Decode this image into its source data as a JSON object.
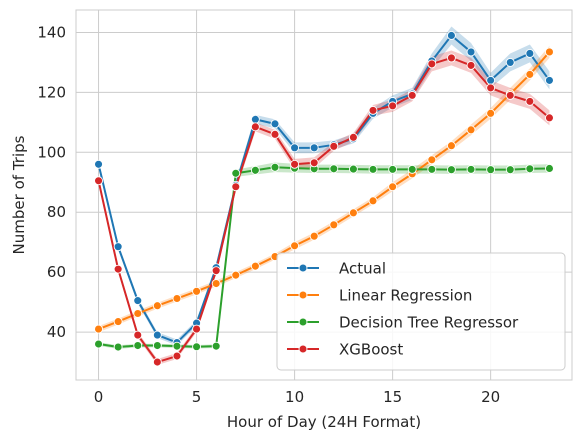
{
  "chart_data": {
    "type": "line",
    "xlabel": "Hour of Day (24H Format)",
    "ylabel": "Number of Trips",
    "xlim": [
      -1.15,
      24.15
    ],
    "ylim": [
      24,
      147.5
    ],
    "xticks": [
      0,
      5,
      10,
      15,
      20
    ],
    "yticks": [
      40,
      60,
      80,
      100,
      120,
      140
    ],
    "grid": true,
    "legend": "lower-right",
    "x": [
      0,
      1,
      2,
      3,
      4,
      5,
      6,
      7,
      8,
      9,
      10,
      11,
      12,
      13,
      14,
      15,
      16,
      17,
      18,
      19,
      20,
      21,
      22,
      23
    ],
    "series": [
      {
        "name": "Actual",
        "color": "#1f77b4",
        "values": [
          96,
          68.5,
          50.5,
          39,
          36.5,
          43,
          61.5,
          89,
          111,
          109.5,
          101.5,
          101.5,
          102.5,
          104.5,
          113,
          117,
          119.5,
          130.5,
          139,
          133.5,
          124,
          130,
          133,
          124
        ],
        "band": [
          1,
          1,
          1,
          1,
          1,
          1,
          1.2,
          1.5,
          1.5,
          1.5,
          1.8,
          1.8,
          1.5,
          1.5,
          1.8,
          2,
          2,
          2.5,
          3,
          3,
          2.5,
          3,
          3,
          3
        ]
      },
      {
        "name": "Linear Regression",
        "color": "#ff7f0e",
        "values": [
          41,
          43.5,
          46.2,
          48.8,
          51.2,
          53.6,
          56.2,
          59,
          62,
          65.2,
          68.8,
          72,
          75.8,
          79.8,
          83.8,
          88.5,
          92.8,
          97.5,
          102.2,
          107.5,
          113,
          119.5,
          126,
          133.5
        ],
        "band": [
          1,
          1,
          1,
          1,
          1,
          1,
          1,
          1,
          1,
          1,
          1.2,
          1.2,
          1.2,
          1.2,
          1.2,
          1.5,
          1.5,
          1.5,
          1.5,
          1.8,
          1.8,
          2,
          2,
          2
        ]
      },
      {
        "name": "Decision Tree Regressor",
        "color": "#2ca02c",
        "values": [
          36,
          35,
          35.5,
          35.5,
          35.3,
          35.1,
          35.3,
          93,
          94,
          95,
          94.7,
          94.5,
          94.5,
          94.4,
          94.3,
          94.3,
          94.3,
          94.3,
          94.2,
          94.3,
          94.2,
          94.2,
          94.5,
          94.6
        ],
        "band": [
          0.6,
          0.6,
          0.6,
          0.6,
          0.6,
          0.6,
          0.6,
          1.2,
          1.4,
          1.6,
          1.5,
          1.4,
          1.4,
          1.4,
          1.4,
          1.4,
          1.4,
          1.4,
          1.4,
          1.4,
          1.4,
          1.4,
          1.4,
          1.4
        ]
      },
      {
        "name": "XGBoost",
        "color": "#d62728",
        "values": [
          90.5,
          61,
          39,
          30,
          32,
          41,
          60.5,
          88.5,
          108.5,
          106,
          96,
          96.5,
          102,
          105,
          114,
          115.5,
          119,
          129.5,
          131.5,
          129,
          121.5,
          119,
          117,
          111.5
        ],
        "band": [
          1,
          1,
          1,
          1,
          1,
          1,
          1.2,
          1.5,
          1.5,
          1.5,
          1.8,
          1.8,
          1.5,
          1.5,
          1.8,
          2,
          2,
          2.5,
          2.5,
          2.5,
          2.5,
          2.5,
          2.5,
          2.5
        ]
      }
    ]
  }
}
